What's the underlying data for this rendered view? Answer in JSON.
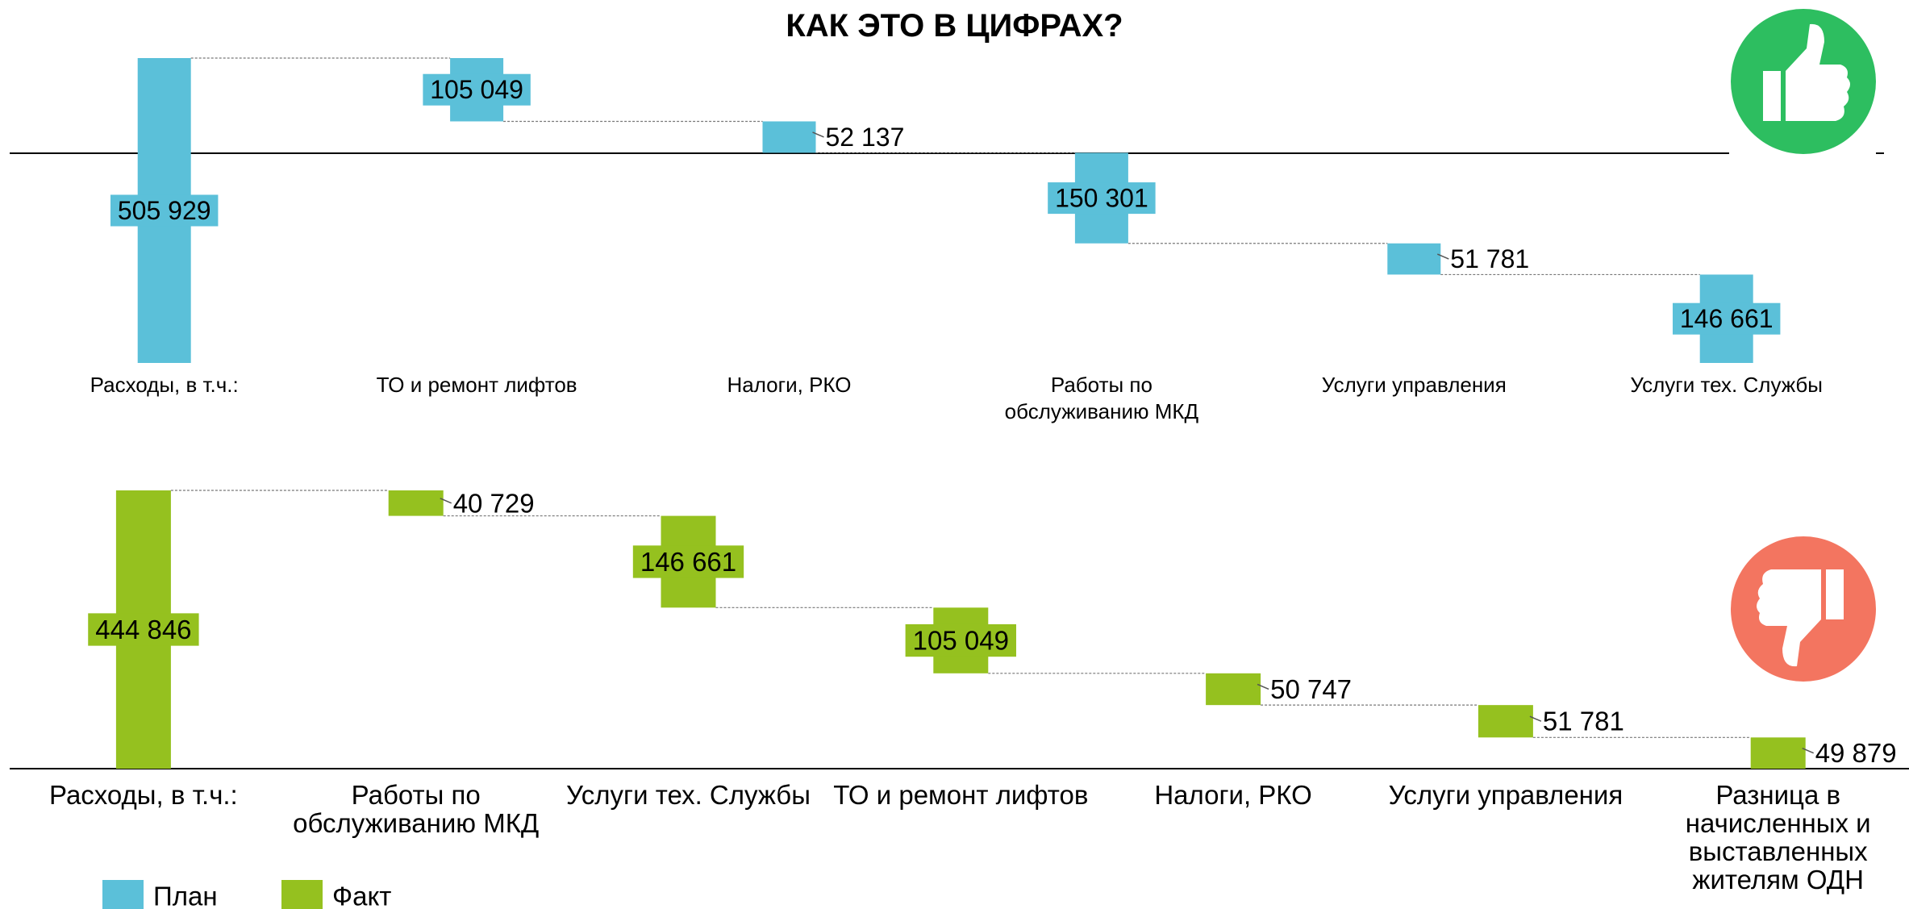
{
  "title": "КАК ЭТО В ЦИФРАХ?",
  "chart_data": [
    {
      "type": "waterfall",
      "categories": [
        "Расходы, в т.ч.:",
        "ТО и ремонт лифтов",
        "Налоги, РКО",
        "Работы по обслуживанию МКД",
        "Услуги управления",
        "Услуги тех. Службы"
      ],
      "series": [
        {
          "name": "План",
          "color": "#5bc0d9",
          "values": [
            505929,
            105049,
            52137,
            150301,
            51781,
            146661
          ],
          "value_labels": [
            "505 929",
            "105 049",
            "52 137",
            "150 301",
            "51 781",
            "146 661"
          ]
        }
      ]
    },
    {
      "type": "waterfall",
      "categories": [
        "Расходы, в т.ч.:",
        "Работы по обслуживанию МКД",
        "Услуги тех. Службы",
        "ТО и ремонт лифтов",
        "Налоги, РКО",
        "Услуги управления",
        "Разница в начисленных и выставленных жителям ОДН"
      ],
      "series": [
        {
          "name": "Факт",
          "color": "#95c11f",
          "values": [
            444846,
            40729,
            146661,
            105049,
            50747,
            51781,
            49879
          ],
          "value_labels": [
            "444 846",
            "40 729",
            "146 661",
            "105 049",
            "50 747",
            "51 781",
            "49 879"
          ]
        }
      ]
    }
  ]
}
